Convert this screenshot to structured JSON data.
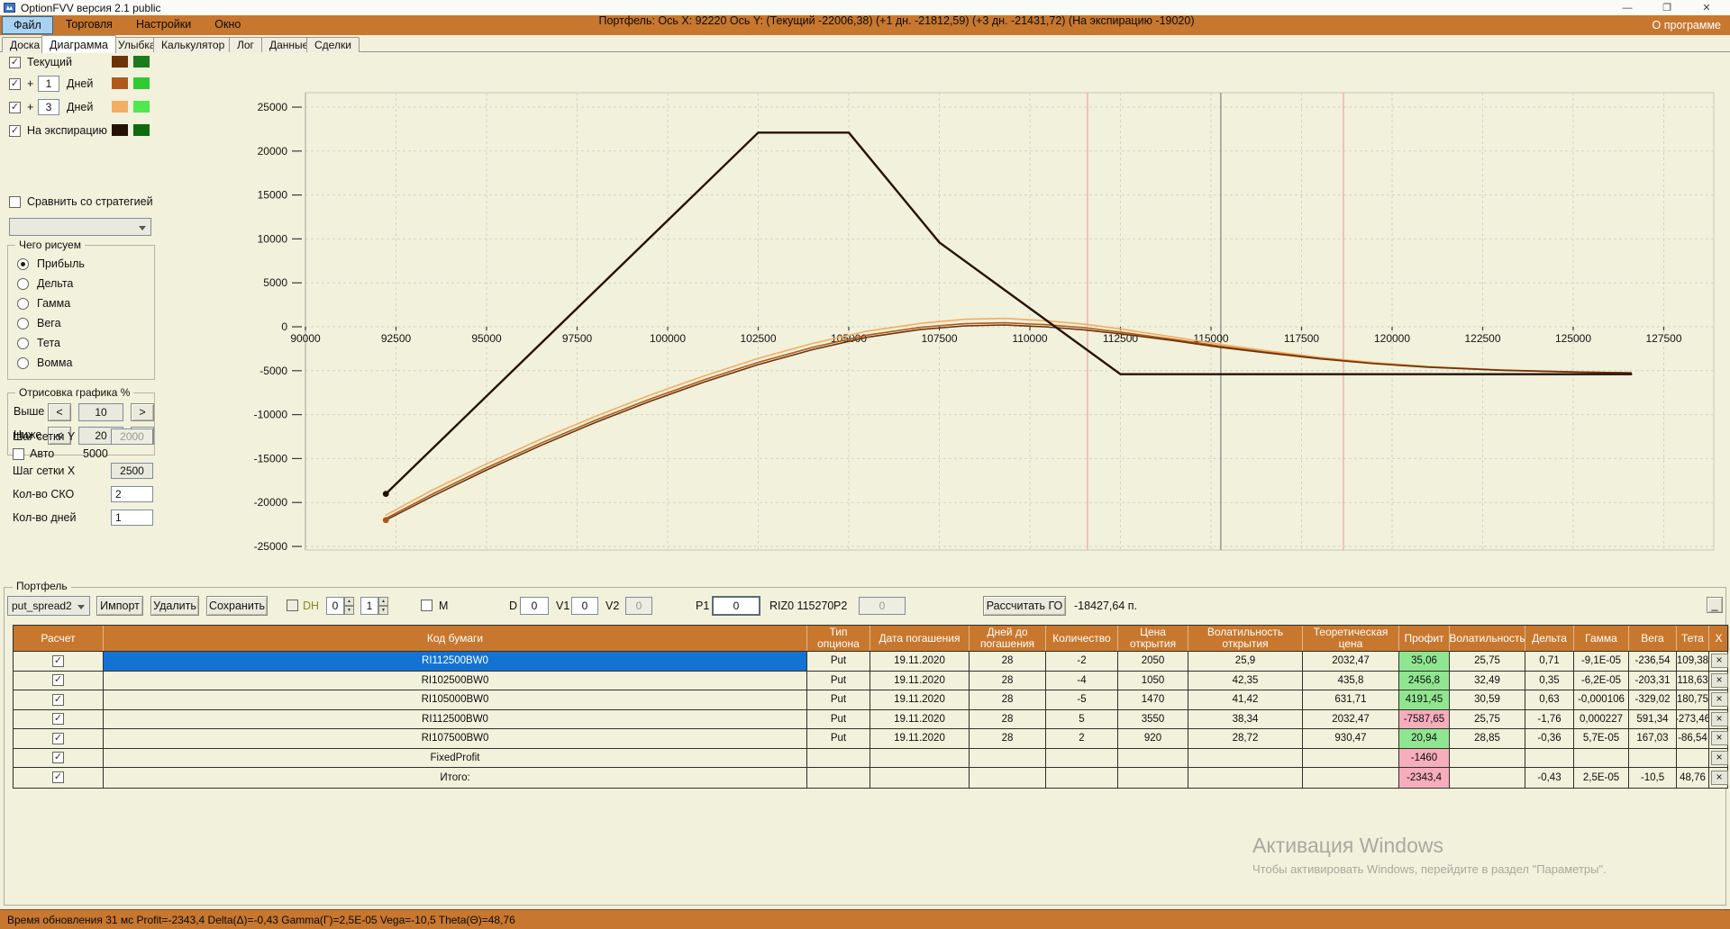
{
  "window": {
    "title": "OptionFVV версия 2.1 public",
    "minimize": "—",
    "maximize": "❐",
    "close": "✕"
  },
  "menu": {
    "items": [
      "Файл",
      "Торговля",
      "Настройки",
      "Окно"
    ],
    "highlighted": "Файл",
    "right_item": "О программе"
  },
  "tabs": {
    "items": [
      "Доска",
      "Диаграмма",
      "Улыбка",
      "Калькулятор",
      "Лог",
      "Данные",
      "Сделки"
    ],
    "active": "Диаграмма"
  },
  "sidebar": {
    "series_toggles": [
      {
        "label": "Текущий",
        "value": null,
        "checked": true,
        "swatch1": "#6E3308",
        "swatch2": "#1E7A1E"
      },
      {
        "label": "Дней",
        "prefix": "+",
        "value": "1",
        "checked": true,
        "swatch1": "#B0591B",
        "swatch2": "#2FCC2F"
      },
      {
        "label": "Дней",
        "prefix": "+",
        "value": "3",
        "checked": true,
        "swatch1": "#F2AE62",
        "swatch2": "#4FE84F"
      },
      {
        "label": "На экспирацию",
        "value": null,
        "checked": true,
        "swatch1": "#261204",
        "swatch2": "#0E6A0E"
      }
    ],
    "compare_label": "Сравнить со стратегией",
    "compare_checked": false,
    "strategy_select_value": "",
    "draw_group": {
      "title": "Чего рисуем",
      "options": [
        "Прибыль",
        "Дельта",
        "Гамма",
        "Вега",
        "Тета",
        "Вомма"
      ],
      "selected": "Прибыль"
    },
    "render_group": {
      "title": "Отрисовка графика %",
      "above_label": "Выше",
      "above_value": "10",
      "below_label": "Ниже",
      "below_value": "20",
      "dec": "<",
      "inc": ">"
    },
    "grid_settings": {
      "y_label": "Шаг сетки Y",
      "y_value": "2000",
      "auto_label": "Авто",
      "auto_checked": true,
      "auto_value": "5000",
      "x_label": "Шаг сетки X",
      "x_value": "2500",
      "sko_label": "Кол-во СКО",
      "sko_value": "2",
      "days_label": "Кол-во дней",
      "days_value": "1"
    }
  },
  "chart_data": {
    "type": "line",
    "title": "Портфель: Ось X: 92220 Ось Y:  (Текущий -22006,38)  (+1 дн. -21812,59)  (+3 дн. -21431,72)  (На экспирацию -19020)",
    "xlabel": "",
    "ylabel": "",
    "xlim": [
      90000,
      128800
    ],
    "ylim": [
      -25900,
      26700
    ],
    "x_ticks": [
      90000,
      92500,
      95000,
      97500,
      100000,
      102500,
      105000,
      107500,
      110000,
      112500,
      115000,
      117500,
      120000,
      122500,
      125000,
      127500
    ],
    "y_ticks": [
      -25000,
      -20000,
      -15000,
      -10000,
      -5000,
      0,
      5000,
      10000,
      15000,
      20000,
      25000
    ],
    "grid": true,
    "legend_position": "none",
    "series": [
      {
        "name": "+3 дн.",
        "color": "#F2AE62",
        "width": 1.6,
        "points": [
          [
            92220,
            -21432
          ],
          [
            93500,
            -18600
          ],
          [
            95000,
            -15600
          ],
          [
            96500,
            -12800
          ],
          [
            98000,
            -10200
          ],
          [
            99500,
            -7800
          ],
          [
            101000,
            -5600
          ],
          [
            102500,
            -3600
          ],
          [
            104000,
            -1900
          ],
          [
            105500,
            -500
          ],
          [
            107000,
            400
          ],
          [
            108200,
            850
          ],
          [
            109300,
            950
          ],
          [
            110400,
            700
          ],
          [
            111500,
            300
          ],
          [
            112500,
            -250
          ],
          [
            114000,
            -1200
          ],
          [
            115270,
            -2000
          ],
          [
            116500,
            -2700
          ],
          [
            118000,
            -3480
          ],
          [
            119500,
            -4080
          ],
          [
            121000,
            -4520
          ],
          [
            123000,
            -4910
          ],
          [
            125000,
            -5130
          ],
          [
            126600,
            -5245
          ]
        ]
      },
      {
        "name": "+1 дн.",
        "color": "#B0591B",
        "width": 1.6,
        "points": [
          [
            92220,
            -21813
          ],
          [
            93500,
            -19050
          ],
          [
            95000,
            -16050
          ],
          [
            96500,
            -13250
          ],
          [
            98000,
            -10650
          ],
          [
            99500,
            -8250
          ],
          [
            101000,
            -6050
          ],
          [
            102500,
            -4050
          ],
          [
            104000,
            -2350
          ],
          [
            105500,
            -950
          ],
          [
            107000,
            -50
          ],
          [
            108200,
            350
          ],
          [
            109300,
            450
          ],
          [
            110400,
            250
          ],
          [
            111500,
            -100
          ],
          [
            112500,
            -600
          ],
          [
            114000,
            -1450
          ],
          [
            115270,
            -2200
          ],
          [
            116500,
            -2870
          ],
          [
            118000,
            -3600
          ],
          [
            119500,
            -4170
          ],
          [
            121000,
            -4580
          ],
          [
            123000,
            -4940
          ],
          [
            125000,
            -5145
          ],
          [
            126600,
            -5248
          ]
        ]
      },
      {
        "name": "Текущий",
        "color": "#6E3308",
        "width": 1.6,
        "points": [
          [
            92220,
            -22006
          ],
          [
            93500,
            -19300
          ],
          [
            95000,
            -16300
          ],
          [
            96500,
            -13500
          ],
          [
            98000,
            -10900
          ],
          [
            99500,
            -8500
          ],
          [
            101000,
            -6300
          ],
          [
            102500,
            -4300
          ],
          [
            104000,
            -2600
          ],
          [
            105500,
            -1200
          ],
          [
            107000,
            -300
          ],
          [
            108200,
            100
          ],
          [
            109300,
            200
          ],
          [
            110400,
            0
          ],
          [
            111500,
            -350
          ],
          [
            112500,
            -800
          ],
          [
            114000,
            -1600
          ],
          [
            115270,
            -2343
          ],
          [
            116500,
            -2950
          ],
          [
            118000,
            -3650
          ],
          [
            119500,
            -4200
          ],
          [
            121000,
            -4600
          ],
          [
            123000,
            -4950
          ],
          [
            125000,
            -5150
          ],
          [
            126600,
            -5250
          ]
        ]
      },
      {
        "name": "На экспирацию",
        "color": "#261204",
        "width": 2.4,
        "points": [
          [
            92220,
            -19020
          ],
          [
            102500,
            22100
          ],
          [
            105000,
            22100
          ],
          [
            107500,
            9600
          ],
          [
            112500,
            -5400
          ],
          [
            126600,
            -5400
          ]
        ]
      }
    ],
    "start_markers": [
      {
        "x": 92220,
        "y": -19020,
        "color": "#261204"
      },
      {
        "x": 92220,
        "y": -22006,
        "color": "#A85717"
      }
    ],
    "markers": {
      "price_line": {
        "x": 115270,
        "color": "#8C8C8C"
      },
      "sigma_lines": {
        "x": [
          111590,
          118655
        ],
        "color": "#F2A7AC"
      }
    }
  },
  "portfolio": {
    "group_label": "Портфель",
    "toolbar": {
      "strategy_select": "put_spread2",
      "import_button": "Импорт",
      "delete_button": "Удалить",
      "save_button": "Сохранить",
      "dh_label": "DH",
      "dh_spin1": "0",
      "dh_spin2": "1",
      "m_label": "M",
      "d_label": "D",
      "d_value": "0",
      "v1_label": "V1",
      "v1_value": "0",
      "v2_label": "V2",
      "v2_value": "0",
      "p1_label": "P1",
      "p1_value": "0",
      "instrument": "RIZ0 115270",
      "p2_label": "P2",
      "p2_value": "0",
      "calc_button": "Рассчитать ГО",
      "margin_value": "-18427,64 п.",
      "corner_button": "_"
    },
    "table": {
      "headers": [
        "Расчет",
        "Код бумаги",
        "Тип опциона",
        "Дата погашения",
        "Дней до погашения",
        "Количество",
        "Цена открытия",
        "Волатильность открытия",
        "Теоретическая цена",
        "Профит",
        "Волатильность",
        "Дельта",
        "Гамма",
        "Вега",
        "Тета",
        "X"
      ],
      "rows": [
        {
          "checked": true,
          "selected": true,
          "profit_color": "green",
          "cells": [
            "RI112500BW0",
            "Put",
            "19.11.2020",
            "28",
            "-2",
            "2050",
            "25,9",
            "2032,47",
            "35,06",
            "25,75",
            "0,71",
            "-9,1E-05",
            "-236,54",
            "109,38"
          ]
        },
        {
          "checked": true,
          "selected": false,
          "profit_color": "green",
          "cells": [
            "RI102500BW0",
            "Put",
            "19.11.2020",
            "28",
            "-4",
            "1050",
            "42,35",
            "435,8",
            "2456,8",
            "32,49",
            "0,35",
            "-6,2E-05",
            "-203,31",
            "118,63"
          ]
        },
        {
          "checked": true,
          "selected": false,
          "profit_color": "green",
          "cells": [
            "RI105000BW0",
            "Put",
            "19.11.2020",
            "28",
            "-5",
            "1470",
            "41,42",
            "631,71",
            "4191,45",
            "30,59",
            "0,63",
            "-0,000106",
            "-329,02",
            "180,75"
          ]
        },
        {
          "checked": true,
          "selected": false,
          "profit_color": "pink",
          "cells": [
            "RI112500BW0",
            "Put",
            "19.11.2020",
            "28",
            "5",
            "3550",
            "38,34",
            "2032,47",
            "-7587,65",
            "25,75",
            "-1,76",
            "0,000227",
            "591,34",
            "-273,46"
          ]
        },
        {
          "checked": true,
          "selected": false,
          "profit_color": "green",
          "cells": [
            "RI107500BW0",
            "Put",
            "19.11.2020",
            "28",
            "2",
            "920",
            "28,72",
            "930,47",
            "20,94",
            "28,85",
            "-0,36",
            "5,7E-05",
            "167,03",
            "-86,54"
          ]
        },
        {
          "checked": true,
          "selected": false,
          "profit_color": "pink",
          "cells": [
            "FixedProfit",
            "",
            "",
            "",
            "",
            "",
            "",
            "",
            "-1460",
            "",
            "",
            "",
            "",
            ""
          ]
        },
        {
          "checked": true,
          "selected": false,
          "profit_color": "pink",
          "cells": [
            "Итого:",
            "",
            "",
            "",
            "",
            "",
            "",
            "",
            "-2343,4",
            "",
            "-0,43",
            "2,5E-05",
            "-10,5",
            "48,76"
          ]
        }
      ]
    }
  },
  "watermark": {
    "line1": "Активация Windows",
    "line2": "Чтобы активировать Windows, перейдите в раздел \"Параметры\"."
  },
  "statusbar": {
    "text": "Время обновления 31 мс   Profit=-2343,4 Delta(Δ)=-0,43 Gamma(Γ)=2,5E-05 Vega=-10,5 Theta(Θ)=48,76"
  }
}
